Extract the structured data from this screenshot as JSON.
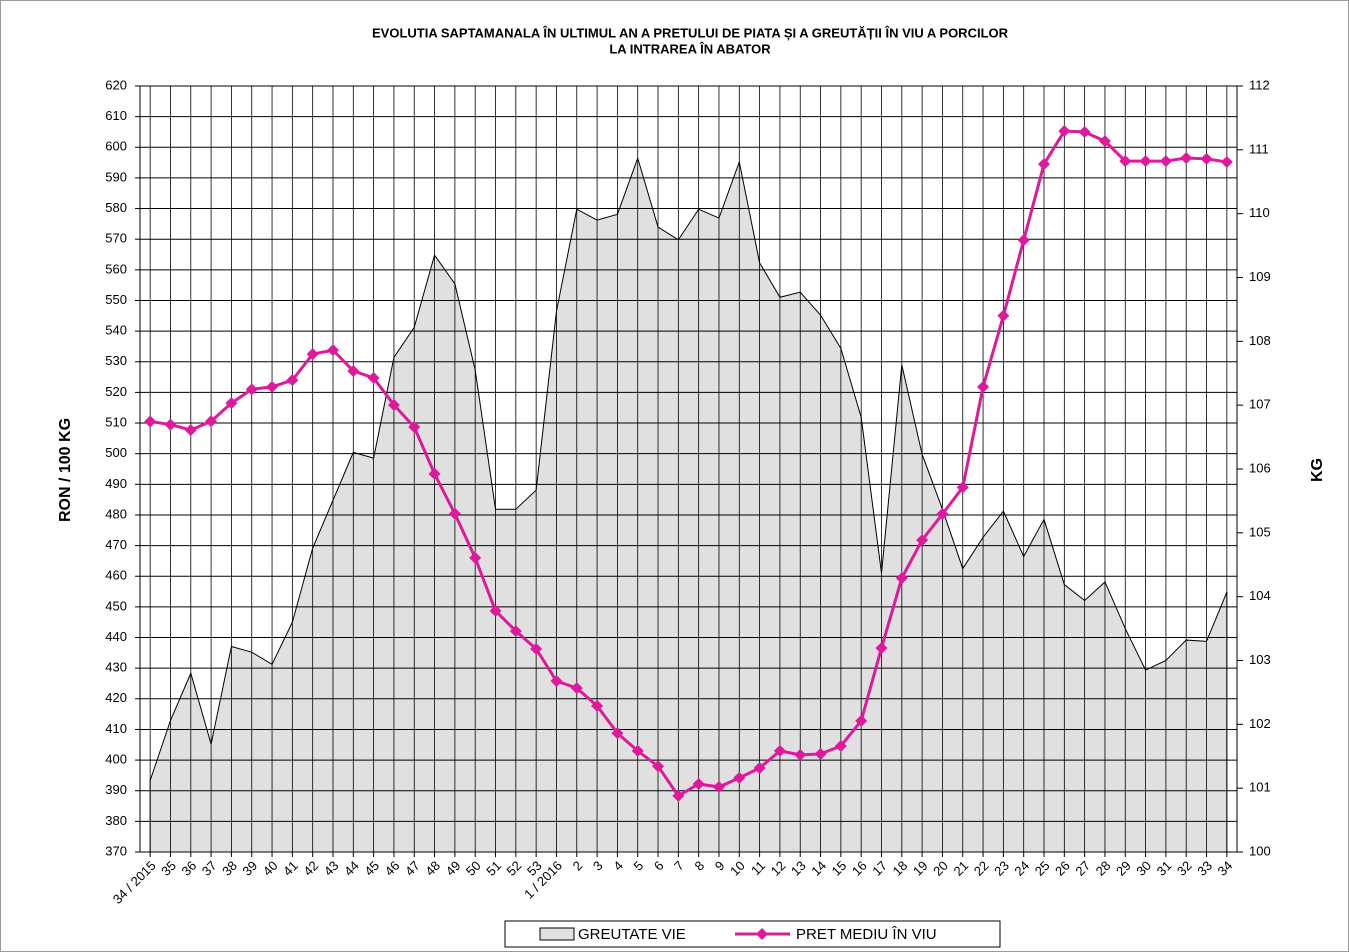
{
  "chart_data": {
    "type": "line",
    "title": [
      "EVOLUTIA SAPTAMANALA ÎN ULTIMUL AN A PRETULUI  DE PIATA ȘI A GREUTĂȚII ÎN VIU A PORCILOR",
      "LA INTRAREA ÎN ABATOR"
    ],
    "y_label": "RON / 100 KG",
    "y2_label": "KG",
    "categories": [
      "34 / 2015",
      "35",
      "36",
      "37",
      "38",
      "39",
      "40",
      "41",
      "42",
      "43",
      "44",
      "45",
      "46",
      "47",
      "48",
      "49",
      "50",
      "51",
      "52",
      "53",
      "1 / 2016",
      "2",
      "3",
      "4",
      "5",
      "6",
      "7",
      "8",
      "9",
      "10",
      "11",
      "12",
      "13",
      "14",
      "15",
      "16",
      "17",
      "18",
      "19",
      "20",
      "21",
      "22",
      "23",
      "24",
      "25",
      "26",
      "27",
      "28",
      "29",
      "30",
      "31",
      "32",
      "33",
      "34"
    ],
    "series": [
      {
        "name": "GREUTATE VIE",
        "type": "area",
        "axis": "y2",
        "color": "#e0e0e0",
        "values": [
          101.12,
          102.06,
          102.8,
          101.69,
          103.22,
          103.13,
          102.94,
          103.6,
          104.76,
          105.51,
          106.26,
          106.17,
          107.75,
          108.22,
          109.35,
          108.9,
          107.55,
          105.37,
          105.37,
          105.67,
          108.47,
          110.07,
          109.9,
          109.99,
          110.87,
          109.79,
          109.59,
          110.07,
          109.93,
          110.81,
          109.23,
          108.69,
          108.77,
          108.41,
          107.89,
          106.81,
          104.37,
          107.63,
          106.23,
          105.37,
          104.44,
          104.93,
          105.34,
          104.63,
          105.21,
          104.19,
          103.94,
          104.23,
          103.5,
          102.85,
          103.0,
          103.32,
          103.3,
          104.07
        ]
      },
      {
        "name": "PRET MEDIU ÎN VIU",
        "type": "line",
        "color": "#dd1a9b",
        "values": [
          510.5,
          509.5,
          507.7,
          510.6,
          516.5,
          521,
          521.8,
          524,
          532.5,
          533.8,
          527,
          524.7,
          515.9,
          508.7,
          493.4,
          480.4,
          466,
          448.7,
          442.1,
          436.3,
          425.8,
          423.5,
          417.7,
          408.8,
          403,
          398,
          388.3,
          392.2,
          391.2,
          394.2,
          397.4,
          403,
          401.7,
          402,
          404.6,
          412.8,
          436.6,
          459.4,
          471.8,
          480.3,
          489,
          521.8,
          545,
          569.7,
          594.5,
          605.3,
          605,
          602,
          595.5,
          595.5,
          595.5,
          596.5,
          596.2,
          595.2
        ]
      }
    ],
    "ylim": [
      370,
      620
    ],
    "yticks": [
      370,
      380,
      390,
      400,
      410,
      420,
      430,
      440,
      450,
      460,
      470,
      480,
      490,
      500,
      510,
      520,
      530,
      540,
      550,
      560,
      570,
      580,
      590,
      600,
      610,
      620
    ],
    "y2lim": [
      100,
      112
    ],
    "y2ticks": [
      100,
      101,
      102,
      103,
      104,
      105,
      106,
      107,
      108,
      109,
      110,
      111,
      112
    ],
    "grid": true,
    "legend": "bottom"
  }
}
